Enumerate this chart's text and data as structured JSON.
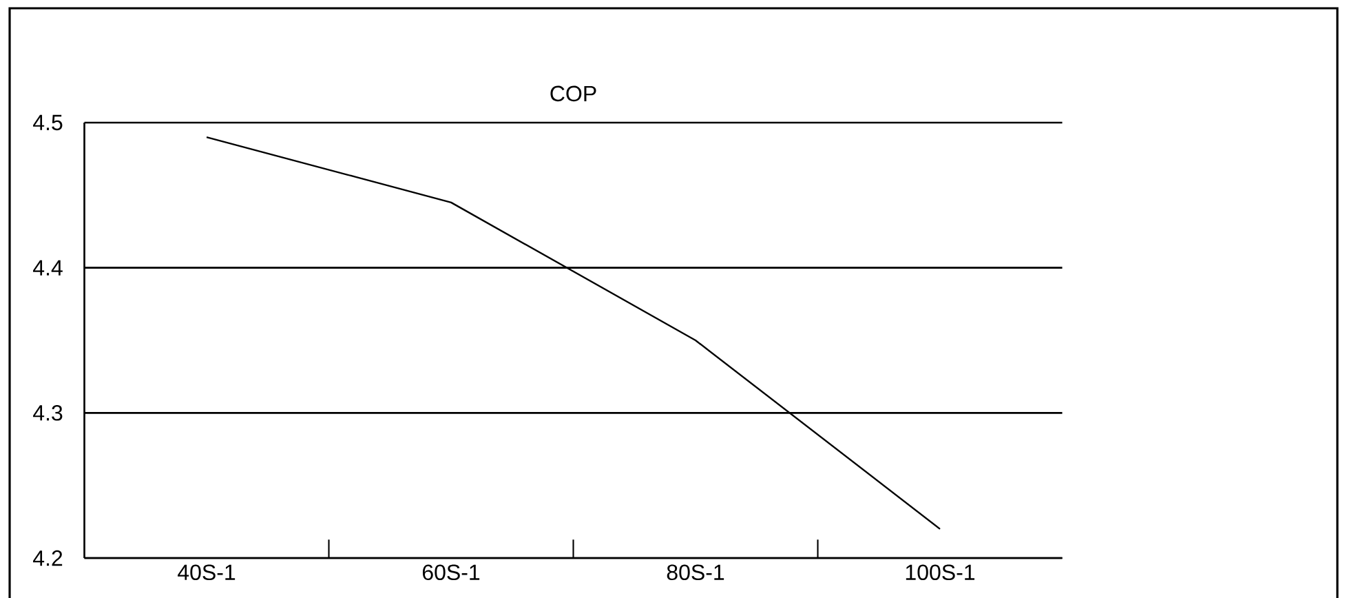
{
  "chart_data": {
    "type": "line",
    "title": "COP",
    "categories": [
      "40S-1",
      "60S-1",
      "80S-1",
      "100S-1"
    ],
    "series": [
      {
        "color": "#000000",
        "values": [
          4.49,
          4.445,
          4.35,
          4.22
        ]
      }
    ],
    "ylim": [
      4.2,
      4.5
    ],
    "yticks": [
      4.2,
      4.3,
      4.4,
      4.5
    ],
    "grid": "y",
    "marker": "none",
    "line_style": "solid"
  }
}
